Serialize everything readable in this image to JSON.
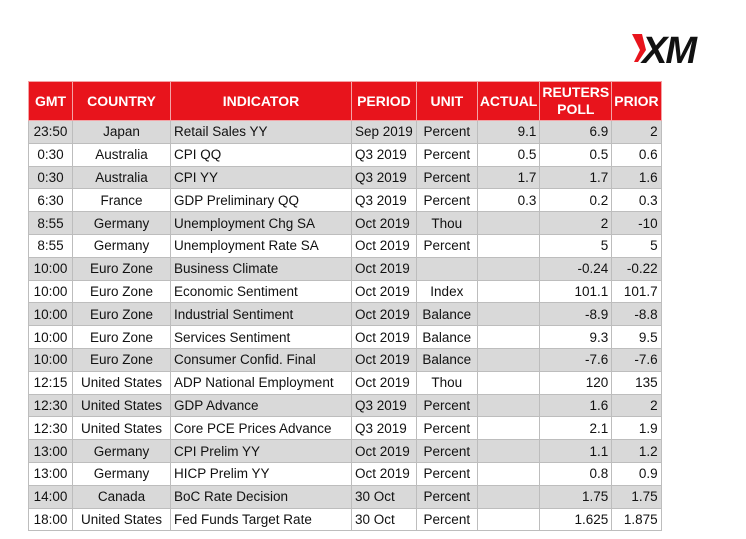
{
  "brand": {
    "logo_text": "XM",
    "accent": "#e8141c"
  },
  "table": {
    "headers": {
      "gmt": "GMT",
      "country": "COUNTRY",
      "indicator": "INDICATOR",
      "period": "PERIOD",
      "unit": "UNIT",
      "actual": "ACTUAL",
      "poll_line1": "REUTERS",
      "poll_line2": "POLL",
      "prior": "PRIOR"
    },
    "rows": [
      {
        "gmt": "23:50",
        "country": "Japan",
        "indicator": "Retail Sales YY",
        "period": "Sep 2019",
        "unit": "Percent",
        "actual": "9.1",
        "poll": "6.9",
        "prior": "2"
      },
      {
        "gmt": "0:30",
        "country": "Australia",
        "indicator": "CPI QQ",
        "period": "Q3 2019",
        "unit": "Percent",
        "actual": "0.5",
        "poll": "0.5",
        "prior": "0.6"
      },
      {
        "gmt": "0:30",
        "country": "Australia",
        "indicator": "CPI YY",
        "period": "Q3 2019",
        "unit": "Percent",
        "actual": "1.7",
        "poll": "1.7",
        "prior": "1.6"
      },
      {
        "gmt": "6:30",
        "country": "France",
        "indicator": "GDP Preliminary QQ",
        "period": "Q3 2019",
        "unit": "Percent",
        "actual": "0.3",
        "poll": "0.2",
        "prior": "0.3"
      },
      {
        "gmt": "8:55",
        "country": "Germany",
        "indicator": "Unemployment Chg SA",
        "period": "Oct 2019",
        "unit": "Thou",
        "actual": "",
        "poll": "2",
        "prior": "-10"
      },
      {
        "gmt": "8:55",
        "country": "Germany",
        "indicator": "Unemployment Rate SA",
        "period": "Oct 2019",
        "unit": "Percent",
        "actual": "",
        "poll": "5",
        "prior": "5"
      },
      {
        "gmt": "10:00",
        "country": "Euro Zone",
        "indicator": "Business Climate",
        "period": "Oct 2019",
        "unit": "",
        "actual": "",
        "poll": "-0.24",
        "prior": "-0.22"
      },
      {
        "gmt": "10:00",
        "country": "Euro Zone",
        "indicator": "Economic Sentiment",
        "period": "Oct 2019",
        "unit": "Index",
        "actual": "",
        "poll": "101.1",
        "prior": "101.7"
      },
      {
        "gmt": "10:00",
        "country": "Euro Zone",
        "indicator": "Industrial Sentiment",
        "period": "Oct 2019",
        "unit": "Balance",
        "actual": "",
        "poll": "-8.9",
        "prior": "-8.8"
      },
      {
        "gmt": "10:00",
        "country": "Euro Zone",
        "indicator": "Services Sentiment",
        "period": "Oct 2019",
        "unit": "Balance",
        "actual": "",
        "poll": "9.3",
        "prior": "9.5"
      },
      {
        "gmt": "10:00",
        "country": "Euro Zone",
        "indicator": "Consumer Confid. Final",
        "period": "Oct 2019",
        "unit": "Balance",
        "actual": "",
        "poll": "-7.6",
        "prior": "-7.6"
      },
      {
        "gmt": "12:15",
        "country": "United States",
        "indicator": "ADP National Employment",
        "period": "Oct 2019",
        "unit": "Thou",
        "actual": "",
        "poll": "120",
        "prior": "135"
      },
      {
        "gmt": "12:30",
        "country": "United States",
        "indicator": "GDP Advance",
        "period": "Q3 2019",
        "unit": "Percent",
        "actual": "",
        "poll": "1.6",
        "prior": "2"
      },
      {
        "gmt": "12:30",
        "country": "United States",
        "indicator": "Core PCE Prices Advance",
        "period": "Q3 2019",
        "unit": "Percent",
        "actual": "",
        "poll": "2.1",
        "prior": "1.9"
      },
      {
        "gmt": "13:00",
        "country": "Germany",
        "indicator": "CPI Prelim YY",
        "period": "Oct 2019",
        "unit": "Percent",
        "actual": "",
        "poll": "1.1",
        "prior": "1.2"
      },
      {
        "gmt": "13:00",
        "country": "Germany",
        "indicator": "HICP Prelim YY",
        "period": "Oct 2019",
        "unit": "Percent",
        "actual": "",
        "poll": "0.8",
        "prior": "0.9"
      },
      {
        "gmt": "14:00",
        "country": "Canada",
        "indicator": "BoC Rate Decision",
        "period": "30 Oct",
        "unit": "Percent",
        "actual": "",
        "poll": "1.75",
        "prior": "1.75"
      },
      {
        "gmt": "18:00",
        "country": "United States",
        "indicator": "Fed Funds Target Rate",
        "period": "30 Oct",
        "unit": "Percent",
        "actual": "",
        "poll": "1.625",
        "prior": "1.875"
      }
    ]
  }
}
